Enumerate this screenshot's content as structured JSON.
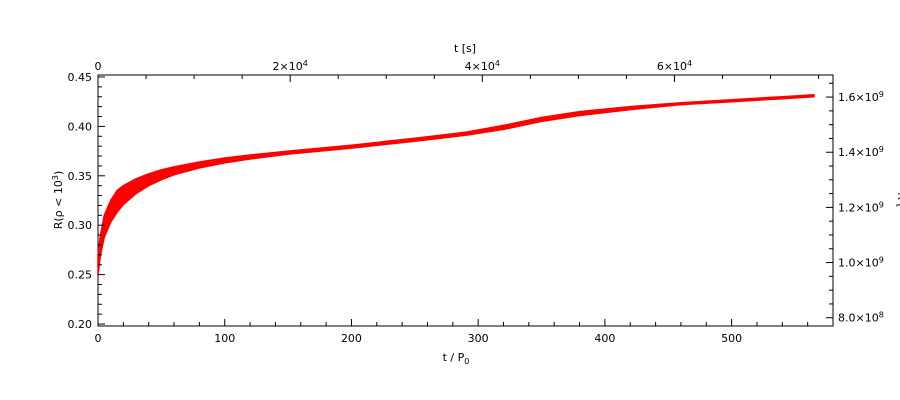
{
  "chart_data": {
    "type": "line",
    "grid": false,
    "x": {
      "label_main": "t / P",
      "label_sub": "0",
      "range": [
        0,
        580
      ],
      "ticks": [
        0,
        100,
        200,
        300,
        400,
        500
      ],
      "tick_labels": [
        "0",
        "100",
        "200",
        "300",
        "400",
        "500"
      ]
    },
    "x_top": {
      "label": "t [s]",
      "range": [
        0,
        76500
      ],
      "ticks": [
        0,
        20000,
        40000,
        60000
      ],
      "tick_labels": [
        {
          "base": "0",
          "exp": ""
        },
        {
          "base": "2×10",
          "exp": "4"
        },
        {
          "base": "4×10",
          "exp": "4"
        },
        {
          "base": "6×10",
          "exp": "4"
        }
      ]
    },
    "y": {
      "label_main": "R(ρ < 10",
      "label_exp": "3",
      "label_end": ")",
      "range": [
        0.198,
        0.452
      ],
      "ticks": [
        0.2,
        0.25,
        0.3,
        0.35,
        0.4,
        0.45
      ],
      "tick_labels": [
        "0.20",
        "0.25",
        "0.30",
        "0.35",
        "0.40",
        "0.45"
      ]
    },
    "y_right": {
      "label": "R [",
      "range": [
        770000000,
        1680000000
      ],
      "ticks": [
        800000000,
        1000000000,
        1200000000,
        1400000000,
        1600000000
      ],
      "tick_labels": [
        {
          "base": "8.0×10",
          "exp": "8"
        },
        {
          "base": "1.0×10",
          "exp": "9"
        },
        {
          "base": "1.2×10",
          "exp": "9"
        },
        {
          "base": "1.4×10",
          "exp": "9"
        },
        {
          "base": "1.6×10",
          "exp": "9"
        }
      ]
    },
    "series": [
      {
        "color": "#ff0000",
        "band": [
          {
            "x": 0,
            "lo": 0.25,
            "hi": 0.27
          },
          {
            "x": 2,
            "lo": 0.27,
            "hi": 0.29
          },
          {
            "x": 5,
            "lo": 0.288,
            "hi": 0.31
          },
          {
            "x": 10,
            "lo": 0.303,
            "hi": 0.325
          },
          {
            "x": 15,
            "lo": 0.313,
            "hi": 0.335
          },
          {
            "x": 20,
            "lo": 0.321,
            "hi": 0.34
          },
          {
            "x": 30,
            "lo": 0.332,
            "hi": 0.347
          },
          {
            "x": 40,
            "lo": 0.34,
            "hi": 0.352
          },
          {
            "x": 50,
            "lo": 0.346,
            "hi": 0.356
          },
          {
            "x": 60,
            "lo": 0.351,
            "hi": 0.359
          },
          {
            "x": 80,
            "lo": 0.358,
            "hi": 0.364
          },
          {
            "x": 100,
            "lo": 0.363,
            "hi": 0.368
          },
          {
            "x": 120,
            "lo": 0.367,
            "hi": 0.371
          },
          {
            "x": 150,
            "lo": 0.372,
            "hi": 0.375
          },
          {
            "x": 200,
            "lo": 0.378,
            "hi": 0.381
          },
          {
            "x": 250,
            "lo": 0.385,
            "hi": 0.388
          },
          {
            "x": 290,
            "lo": 0.391,
            "hi": 0.394
          },
          {
            "x": 320,
            "lo": 0.397,
            "hi": 0.401
          },
          {
            "x": 350,
            "lo": 0.405,
            "hi": 0.409
          },
          {
            "x": 380,
            "lo": 0.411,
            "hi": 0.415
          },
          {
            "x": 420,
            "lo": 0.417,
            "hi": 0.42
          },
          {
            "x": 460,
            "lo": 0.422,
            "hi": 0.424
          },
          {
            "x": 500,
            "lo": 0.425,
            "hi": 0.427
          },
          {
            "x": 540,
            "lo": 0.428,
            "hi": 0.43
          },
          {
            "x": 565,
            "lo": 0.43,
            "hi": 0.432
          }
        ]
      }
    ]
  }
}
